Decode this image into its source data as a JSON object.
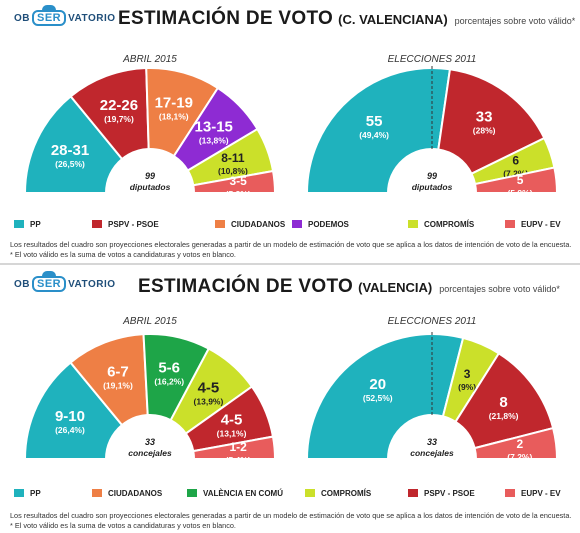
{
  "logo": {
    "left": "OB",
    "mark": "SER",
    "right": "VATORIO"
  },
  "notes": {
    "note1": "Los resultados del cuadro son proyecciones electorales generadas a partir de un modelo de estimación de voto que se aplica a los datos de intención de voto de la encuesta.",
    "note2": "* El voto válido es la suma de votos a candidaturas y votos en blanco."
  },
  "colors": {
    "PP": "#1fb2bd",
    "PSPV": "#c0272d",
    "CIUDADANOS": "#ee7f45",
    "PODEMOS": "#8e2bd3",
    "COMPROMIS": "#cbe02a",
    "EUPV": "#e85c5c",
    "VALENCIA": "#1ea548"
  },
  "chart_data": [
    {
      "title": "ESTIMACIÓN DE VOTO",
      "region": "(C. VALENCIANA)",
      "subtitle": "porcentajes sobre voto válido*",
      "legend": [
        {
          "label": "PP",
          "color": "#1fb2bd"
        },
        {
          "label": "PSPV - PSOE",
          "color": "#c0272d"
        },
        {
          "label": "CIUDADANOS",
          "color": "#ee7f45"
        },
        {
          "label": "PODEMOS",
          "color": "#8e2bd3"
        },
        {
          "label": "COMPROMÍS",
          "color": "#cbe02a"
        },
        {
          "label": "EUPV - EV",
          "color": "#e85c5c"
        }
      ],
      "charts": [
        {
          "type": "pie",
          "title": "ABRIL 2015",
          "center_value": "99",
          "center_label": "diputados",
          "series": [
            {
              "name": "PP",
              "seats": "28-31",
              "pct": "(26,5%)",
              "value": 26.5,
              "color": "#1fb2bd"
            },
            {
              "name": "PSPV - PSOE",
              "seats": "22-26",
              "pct": "(19,7%)",
              "value": 19.7,
              "color": "#c0272d"
            },
            {
              "name": "CIUDADANOS",
              "seats": "17-19",
              "pct": "(18,1%)",
              "value": 18.1,
              "color": "#ee7f45"
            },
            {
              "name": "PODEMOS",
              "seats": "13-15",
              "pct": "(13,8%)",
              "value": 13.8,
              "color": "#8e2bd3"
            },
            {
              "name": "COMPROMÍS",
              "seats": "8-11",
              "pct": "(10,8%)",
              "value": 10.8,
              "color": "#cbe02a"
            },
            {
              "name": "EUPV - EV",
              "seats": "3-5",
              "pct": "(5,3%)",
              "value": 5.3,
              "color": "#e85c5c"
            }
          ]
        },
        {
          "type": "pie",
          "title": "ELECCIONES 2011",
          "center_value": "99",
          "center_label": "diputados",
          "series": [
            {
              "name": "PP",
              "seats": "55",
              "pct": "(49,4%)",
              "value": 49.4,
              "color": "#1fb2bd"
            },
            {
              "name": "PSPV - PSOE",
              "seats": "33",
              "pct": "(28%)",
              "value": 28,
              "color": "#c0272d"
            },
            {
              "name": "COMPROMÍS",
              "seats": "6",
              "pct": "(7,2%)",
              "value": 7.2,
              "color": "#cbe02a"
            },
            {
              "name": "EUPV - EV",
              "seats": "5",
              "pct": "(5,9%)",
              "value": 5.9,
              "color": "#e85c5c"
            }
          ]
        }
      ]
    },
    {
      "title": "ESTIMACIÓN DE VOTO",
      "region": "(VALENCIA)",
      "subtitle": "porcentajes sobre voto válido*",
      "legend": [
        {
          "label": "PP",
          "color": "#1fb2bd"
        },
        {
          "label": "CIUDADANOS",
          "color": "#ee7f45"
        },
        {
          "label": "VALÈNCIA EN COMÚ",
          "color": "#1ea548"
        },
        {
          "label": "COMPROMÍS",
          "color": "#cbe02a"
        },
        {
          "label": "PSPV - PSOE",
          "color": "#c0272d"
        },
        {
          "label": "EUPV - EV",
          "color": "#e85c5c"
        }
      ],
      "charts": [
        {
          "type": "pie",
          "title": "ABRIL 2015",
          "center_value": "33",
          "center_label": "concejales",
          "series": [
            {
              "name": "PP",
              "seats": "9-10",
              "pct": "(26,4%)",
              "value": 26.4,
              "color": "#1fb2bd"
            },
            {
              "name": "CIUDADANOS",
              "seats": "6-7",
              "pct": "(19,1%)",
              "value": 19.1,
              "color": "#ee7f45"
            },
            {
              "name": "VALÈNCIA EN COMÚ",
              "seats": "5-6",
              "pct": "(16,2%)",
              "value": 16.2,
              "color": "#1ea548"
            },
            {
              "name": "COMPROMÍS",
              "seats": "4-5",
              "pct": "(13,9%)",
              "value": 13.9,
              "color": "#cbe02a"
            },
            {
              "name": "PSPV - PSOE",
              "seats": "4-5",
              "pct": "(13,1%)",
              "value": 13.1,
              "color": "#c0272d"
            },
            {
              "name": "EUPV - EV",
              "seats": "1-2",
              "pct": "(5,4%)",
              "value": 5.4,
              "color": "#e85c5c"
            }
          ]
        },
        {
          "type": "pie",
          "title": "ELECCIONES 2011",
          "center_value": "33",
          "center_label": "concejales",
          "series": [
            {
              "name": "PP",
              "seats": "20",
              "pct": "(52,5%)",
              "value": 52.5,
              "color": "#1fb2bd"
            },
            {
              "name": "COMPROMÍS",
              "seats": "3",
              "pct": "(9%)",
              "value": 9,
              "color": "#cbe02a"
            },
            {
              "name": "PSPV - PSOE",
              "seats": "8",
              "pct": "(21,8%)",
              "value": 21.8,
              "color": "#c0272d"
            },
            {
              "name": "EUPV - EV",
              "seats": "2",
              "pct": "(7,2%)",
              "value": 7.2,
              "color": "#e85c5c"
            }
          ]
        }
      ]
    }
  ]
}
